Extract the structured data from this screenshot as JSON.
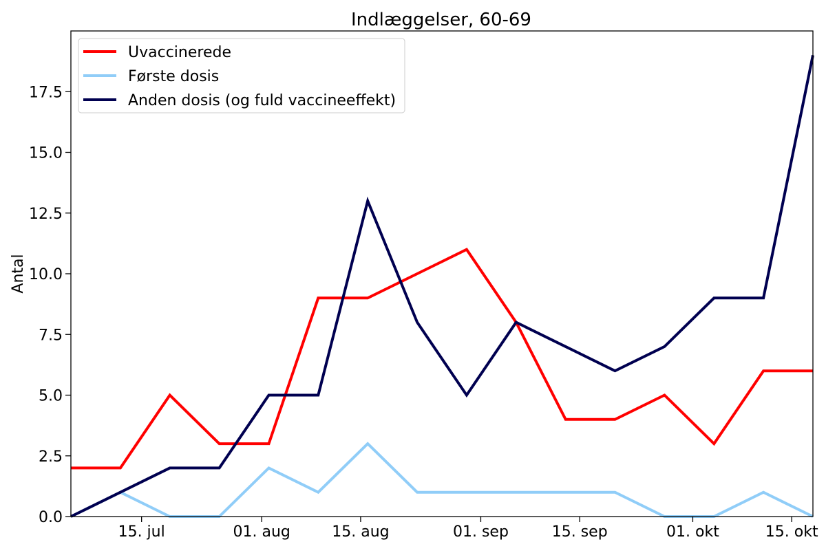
{
  "chart_data": {
    "type": "line",
    "title": "Indlæggelser, 60-69",
    "xlabel": "",
    "ylabel": "Antal",
    "x": [
      "2021-07-05",
      "2021-07-12",
      "2021-07-19",
      "2021-07-26",
      "2021-08-02",
      "2021-08-09",
      "2021-08-16",
      "2021-08-23",
      "2021-08-30",
      "2021-09-06",
      "2021-09-13",
      "2021-09-20",
      "2021-09-27",
      "2021-10-04",
      "2021-10-11",
      "2021-10-18"
    ],
    "xlim": [
      "2021-07-05",
      "2021-10-18"
    ],
    "xticks": [
      {
        "date": "2021-07-15",
        "label": "15. jul"
      },
      {
        "date": "2021-08-01",
        "label": "01. aug"
      },
      {
        "date": "2021-08-15",
        "label": "15. aug"
      },
      {
        "date": "2021-09-01",
        "label": "01. sep"
      },
      {
        "date": "2021-09-15",
        "label": "15. sep"
      },
      {
        "date": "2021-10-01",
        "label": "01. okt"
      },
      {
        "date": "2021-10-15",
        "label": "15. okt"
      }
    ],
    "ylim": [
      0,
      20
    ],
    "yticks": [
      {
        "value": 0,
        "label": "0.0"
      },
      {
        "value": 2.5,
        "label": "2.5"
      },
      {
        "value": 5,
        "label": "5.0"
      },
      {
        "value": 7.5,
        "label": "7.5"
      },
      {
        "value": 10,
        "label": "10.0"
      },
      {
        "value": 12.5,
        "label": "12.5"
      },
      {
        "value": 15,
        "label": "15.0"
      },
      {
        "value": 17.5,
        "label": "17.5"
      }
    ],
    "grid": false,
    "legend_position": "top-left",
    "series": [
      {
        "name": "Uvaccinerede",
        "color": "#ff0000",
        "values": [
          2,
          2,
          5,
          3,
          3,
          9,
          9,
          10,
          11,
          8,
          4,
          4,
          5,
          3,
          6,
          6
        ]
      },
      {
        "name": "Første dosis",
        "color": "#90cdf8",
        "values": [
          0,
          1,
          0,
          0,
          2,
          1,
          3,
          1,
          1,
          1,
          1,
          1,
          0,
          0,
          1,
          0
        ]
      },
      {
        "name": "Anden dosis (og fuld vaccineeffekt)",
        "color": "#000050",
        "values": [
          0,
          1,
          2,
          2,
          5,
          5,
          13,
          8,
          5,
          8,
          7,
          6,
          7,
          9,
          9,
          19
        ]
      }
    ]
  }
}
